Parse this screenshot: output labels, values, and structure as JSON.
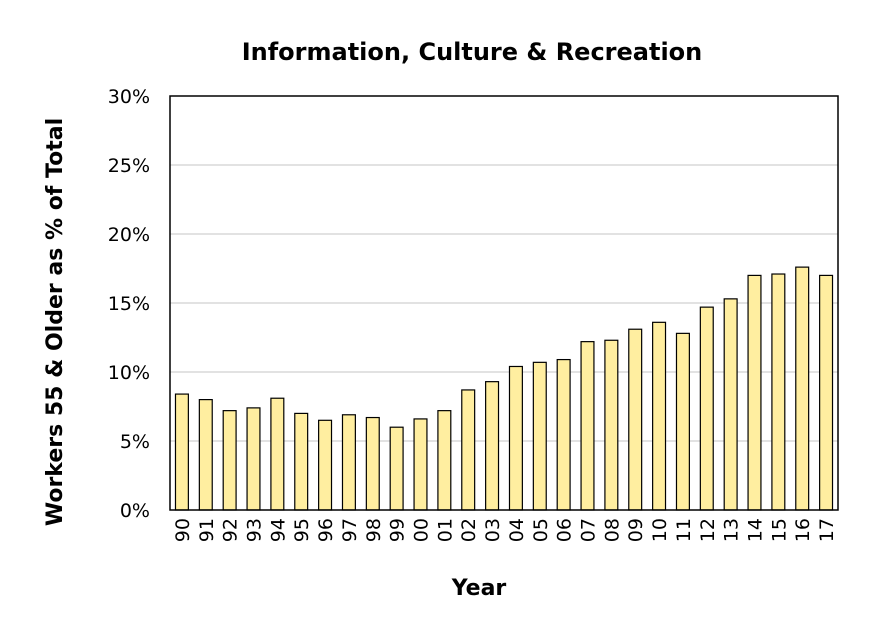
{
  "chart_data": {
    "type": "bar",
    "title": "Information, Culture & Recreation",
    "xlabel": "Year",
    "ylabel": "Workers 55 & Older as % of Total",
    "categories": [
      "90",
      "91",
      "92",
      "93",
      "94",
      "95",
      "96",
      "97",
      "98",
      "99",
      "00",
      "01",
      "02",
      "03",
      "04",
      "05",
      "06",
      "07",
      "08",
      "09",
      "10",
      "11",
      "12",
      "13",
      "14",
      "15",
      "16",
      "17"
    ],
    "values": [
      8.4,
      8.0,
      7.2,
      7.4,
      8.1,
      7.0,
      6.5,
      6.9,
      6.7,
      6.0,
      6.6,
      7.2,
      8.7,
      9.3,
      10.4,
      10.7,
      10.9,
      12.2,
      12.3,
      13.1,
      13.6,
      12.8,
      14.7,
      15.3,
      17.0,
      17.1,
      17.6,
      17.0
    ],
    "ylim": [
      0,
      30
    ],
    "yticks": [
      "0%",
      "5%",
      "10%",
      "15%",
      "20%",
      "25%",
      "30%"
    ],
    "grid": true,
    "legend": "none",
    "bar_color": "#ffeea0"
  }
}
